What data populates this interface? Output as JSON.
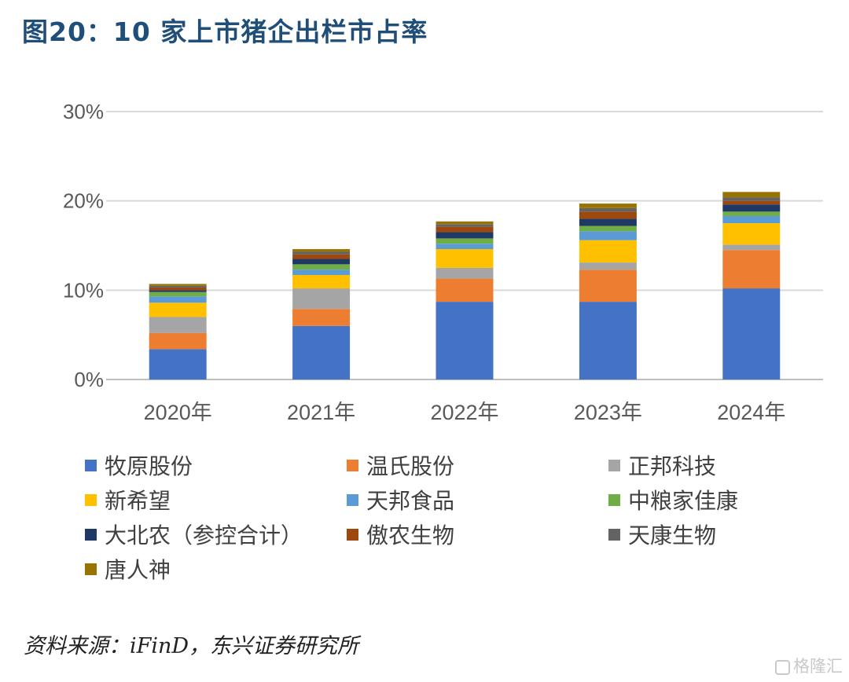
{
  "title": "图20：10 家上市猪企出栏市占率",
  "source": "资料来源：iFinD，东兴证券研究所",
  "watermark": "格隆汇",
  "chart_data": {
    "type": "bar",
    "stacked": true,
    "title": "",
    "xlabel": "",
    "ylabel": "",
    "ylim": [
      0,
      30
    ],
    "yticks": [
      "0%",
      "10%",
      "20%",
      "30%"
    ],
    "grid": true,
    "legend_position": "bottom",
    "categories": [
      "2020年",
      "2021年",
      "2022年",
      "2023年",
      "2024年"
    ],
    "series": [
      {
        "name": "牧原股份",
        "color": "#4472c4",
        "values": [
          3.4,
          6.0,
          8.7,
          8.7,
          10.2
        ]
      },
      {
        "name": "温氏股份",
        "color": "#ed7d31",
        "values": [
          1.8,
          1.9,
          2.6,
          3.6,
          4.3
        ]
      },
      {
        "name": "正邦科技",
        "color": "#a5a5a5",
        "values": [
          1.8,
          2.3,
          1.2,
          0.8,
          0.6
        ]
      },
      {
        "name": "新希望",
        "color": "#ffc000",
        "values": [
          1.6,
          1.5,
          2.1,
          2.5,
          2.4
        ]
      },
      {
        "name": "天邦食品",
        "color": "#5b9bd5",
        "values": [
          0.7,
          0.6,
          0.6,
          1.0,
          0.8
        ]
      },
      {
        "name": "中粮家佳康",
        "color": "#70ad47",
        "values": [
          0.5,
          0.6,
          0.6,
          0.6,
          0.5
        ]
      },
      {
        "name": "大北农（参控合计）",
        "color": "#1f3864",
        "values": [
          0.2,
          0.6,
          0.7,
          0.8,
          0.8
        ]
      },
      {
        "name": "傲农生物",
        "color": "#9e480e",
        "values": [
          0.3,
          0.5,
          0.6,
          0.8,
          0.4
        ]
      },
      {
        "name": "天康生物",
        "color": "#636363",
        "values": [
          0.2,
          0.3,
          0.3,
          0.4,
          0.4
        ]
      },
      {
        "name": "唐人神",
        "color": "#997300",
        "values": [
          0.2,
          0.3,
          0.3,
          0.5,
          0.6
        ]
      }
    ]
  }
}
